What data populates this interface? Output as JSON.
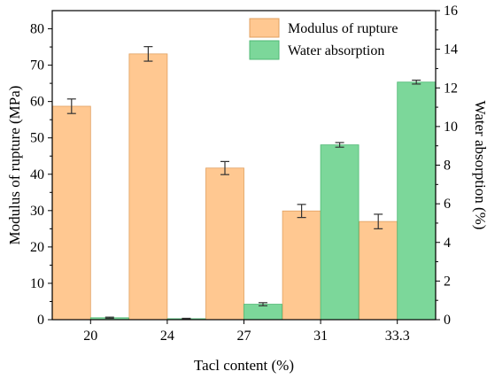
{
  "chart_data": {
    "type": "bar",
    "categories": [
      "20",
      "24",
      "27",
      "31",
      "33.3"
    ],
    "xlabel": "Tacl content (%)",
    "series": [
      {
        "name": "Modulus of rupture",
        "axis": "left",
        "color": "#FFC891",
        "edge": "#E0A060",
        "values": [
          58.7,
          73.1,
          41.7,
          29.9,
          27.0
        ],
        "errors": [
          2.0,
          2.0,
          1.8,
          1.8,
          2.0
        ]
      },
      {
        "name": "Water absorption",
        "axis": "right",
        "color": "#7CD79A",
        "edge": "#4FB874",
        "values": [
          0.1,
          0.05,
          0.8,
          9.05,
          12.3
        ],
        "errors": [
          0.03,
          0.02,
          0.08,
          0.12,
          0.1
        ]
      }
    ],
    "left_axis": {
      "label": "Modulus of rupture (MPa)",
      "ylim": [
        0,
        85
      ],
      "ticks": [
        0,
        10,
        20,
        30,
        40,
        50,
        60,
        70,
        80
      ]
    },
    "right_axis": {
      "label": "Water absorption (%)",
      "ylim": [
        0,
        16
      ],
      "ticks": [
        0,
        2,
        4,
        6,
        8,
        10,
        12,
        14,
        16
      ]
    },
    "legend_position": "top-right",
    "grid": false
  }
}
